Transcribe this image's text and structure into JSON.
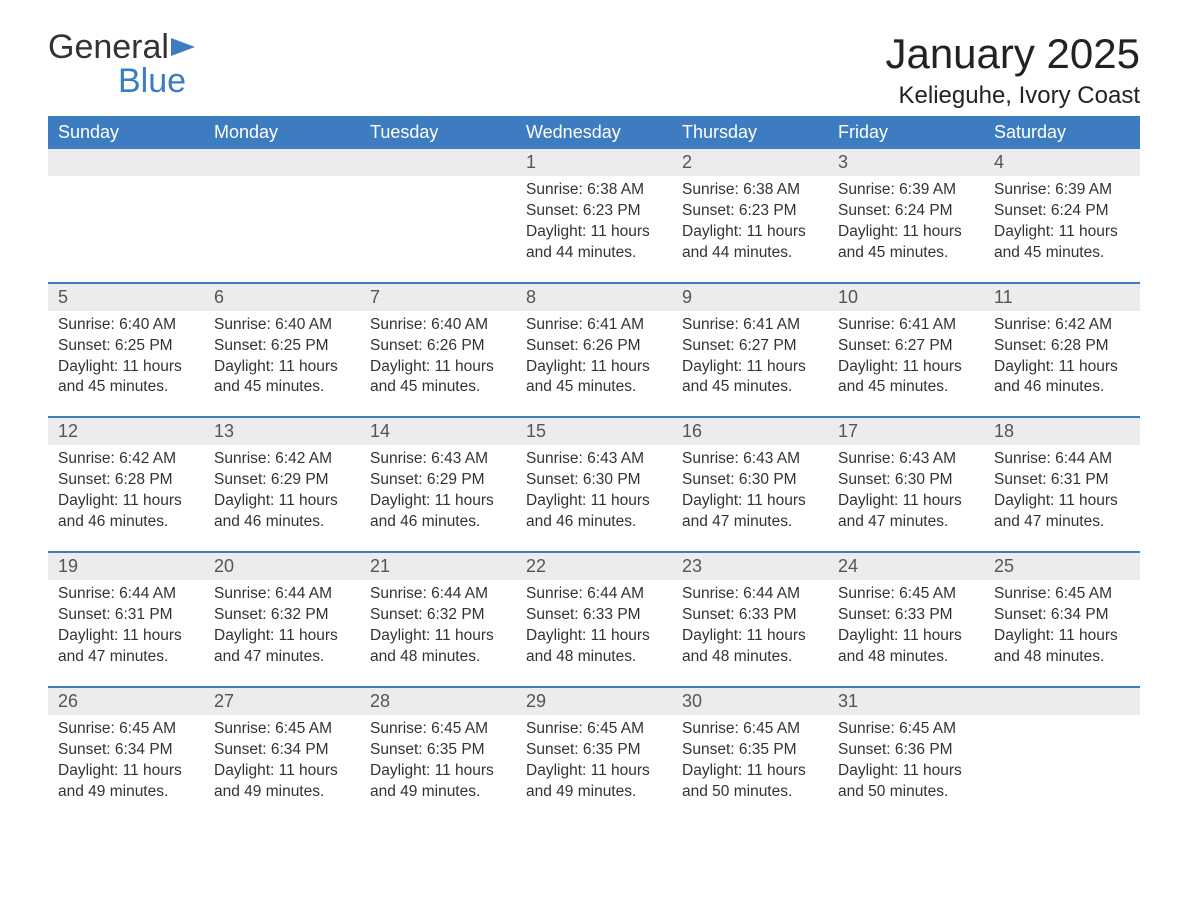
{
  "logo": {
    "text_general": "General",
    "text_blue": "Blue",
    "icon_color": "#3d7cc0"
  },
  "header": {
    "month_title": "January 2025",
    "location": "Kelieguhe, Ivory Coast"
  },
  "colors": {
    "header_bg": "#3d7cc0",
    "header_text": "#ffffff",
    "number_row_bg": "#ececec",
    "body_text": "#333333",
    "page_bg": "#ffffff",
    "week_divider": "#3d7cc0"
  },
  "typography": {
    "title_fontsize": 42,
    "location_fontsize": 24,
    "day_header_fontsize": 18,
    "day_number_fontsize": 18,
    "detail_fontsize": 15.5,
    "logo_fontsize": 34
  },
  "day_names": [
    "Sunday",
    "Monday",
    "Tuesday",
    "Wednesday",
    "Thursday",
    "Friday",
    "Saturday"
  ],
  "weeks": [
    [
      null,
      null,
      null,
      {
        "n": "1",
        "sunrise": "6:38 AM",
        "sunset": "6:23 PM",
        "daylight": "11 hours and 44 minutes."
      },
      {
        "n": "2",
        "sunrise": "6:38 AM",
        "sunset": "6:23 PM",
        "daylight": "11 hours and 44 minutes."
      },
      {
        "n": "3",
        "sunrise": "6:39 AM",
        "sunset": "6:24 PM",
        "daylight": "11 hours and 45 minutes."
      },
      {
        "n": "4",
        "sunrise": "6:39 AM",
        "sunset": "6:24 PM",
        "daylight": "11 hours and 45 minutes."
      }
    ],
    [
      {
        "n": "5",
        "sunrise": "6:40 AM",
        "sunset": "6:25 PM",
        "daylight": "11 hours and 45 minutes."
      },
      {
        "n": "6",
        "sunrise": "6:40 AM",
        "sunset": "6:25 PM",
        "daylight": "11 hours and 45 minutes."
      },
      {
        "n": "7",
        "sunrise": "6:40 AM",
        "sunset": "6:26 PM",
        "daylight": "11 hours and 45 minutes."
      },
      {
        "n": "8",
        "sunrise": "6:41 AM",
        "sunset": "6:26 PM",
        "daylight": "11 hours and 45 minutes."
      },
      {
        "n": "9",
        "sunrise": "6:41 AM",
        "sunset": "6:27 PM",
        "daylight": "11 hours and 45 minutes."
      },
      {
        "n": "10",
        "sunrise": "6:41 AM",
        "sunset": "6:27 PM",
        "daylight": "11 hours and 45 minutes."
      },
      {
        "n": "11",
        "sunrise": "6:42 AM",
        "sunset": "6:28 PM",
        "daylight": "11 hours and 46 minutes."
      }
    ],
    [
      {
        "n": "12",
        "sunrise": "6:42 AM",
        "sunset": "6:28 PM",
        "daylight": "11 hours and 46 minutes."
      },
      {
        "n": "13",
        "sunrise": "6:42 AM",
        "sunset": "6:29 PM",
        "daylight": "11 hours and 46 minutes."
      },
      {
        "n": "14",
        "sunrise": "6:43 AM",
        "sunset": "6:29 PM",
        "daylight": "11 hours and 46 minutes."
      },
      {
        "n": "15",
        "sunrise": "6:43 AM",
        "sunset": "6:30 PM",
        "daylight": "11 hours and 46 minutes."
      },
      {
        "n": "16",
        "sunrise": "6:43 AM",
        "sunset": "6:30 PM",
        "daylight": "11 hours and 47 minutes."
      },
      {
        "n": "17",
        "sunrise": "6:43 AM",
        "sunset": "6:30 PM",
        "daylight": "11 hours and 47 minutes."
      },
      {
        "n": "18",
        "sunrise": "6:44 AM",
        "sunset": "6:31 PM",
        "daylight": "11 hours and 47 minutes."
      }
    ],
    [
      {
        "n": "19",
        "sunrise": "6:44 AM",
        "sunset": "6:31 PM",
        "daylight": "11 hours and 47 minutes."
      },
      {
        "n": "20",
        "sunrise": "6:44 AM",
        "sunset": "6:32 PM",
        "daylight": "11 hours and 47 minutes."
      },
      {
        "n": "21",
        "sunrise": "6:44 AM",
        "sunset": "6:32 PM",
        "daylight": "11 hours and 48 minutes."
      },
      {
        "n": "22",
        "sunrise": "6:44 AM",
        "sunset": "6:33 PM",
        "daylight": "11 hours and 48 minutes."
      },
      {
        "n": "23",
        "sunrise": "6:44 AM",
        "sunset": "6:33 PM",
        "daylight": "11 hours and 48 minutes."
      },
      {
        "n": "24",
        "sunrise": "6:45 AM",
        "sunset": "6:33 PM",
        "daylight": "11 hours and 48 minutes."
      },
      {
        "n": "25",
        "sunrise": "6:45 AM",
        "sunset": "6:34 PM",
        "daylight": "11 hours and 48 minutes."
      }
    ],
    [
      {
        "n": "26",
        "sunrise": "6:45 AM",
        "sunset": "6:34 PM",
        "daylight": "11 hours and 49 minutes."
      },
      {
        "n": "27",
        "sunrise": "6:45 AM",
        "sunset": "6:34 PM",
        "daylight": "11 hours and 49 minutes."
      },
      {
        "n": "28",
        "sunrise": "6:45 AM",
        "sunset": "6:35 PM",
        "daylight": "11 hours and 49 minutes."
      },
      {
        "n": "29",
        "sunrise": "6:45 AM",
        "sunset": "6:35 PM",
        "daylight": "11 hours and 49 minutes."
      },
      {
        "n": "30",
        "sunrise": "6:45 AM",
        "sunset": "6:35 PM",
        "daylight": "11 hours and 50 minutes."
      },
      {
        "n": "31",
        "sunrise": "6:45 AM",
        "sunset": "6:36 PM",
        "daylight": "11 hours and 50 minutes."
      },
      null
    ]
  ],
  "labels": {
    "sunrise": "Sunrise:",
    "sunset": "Sunset:",
    "daylight": "Daylight:"
  }
}
